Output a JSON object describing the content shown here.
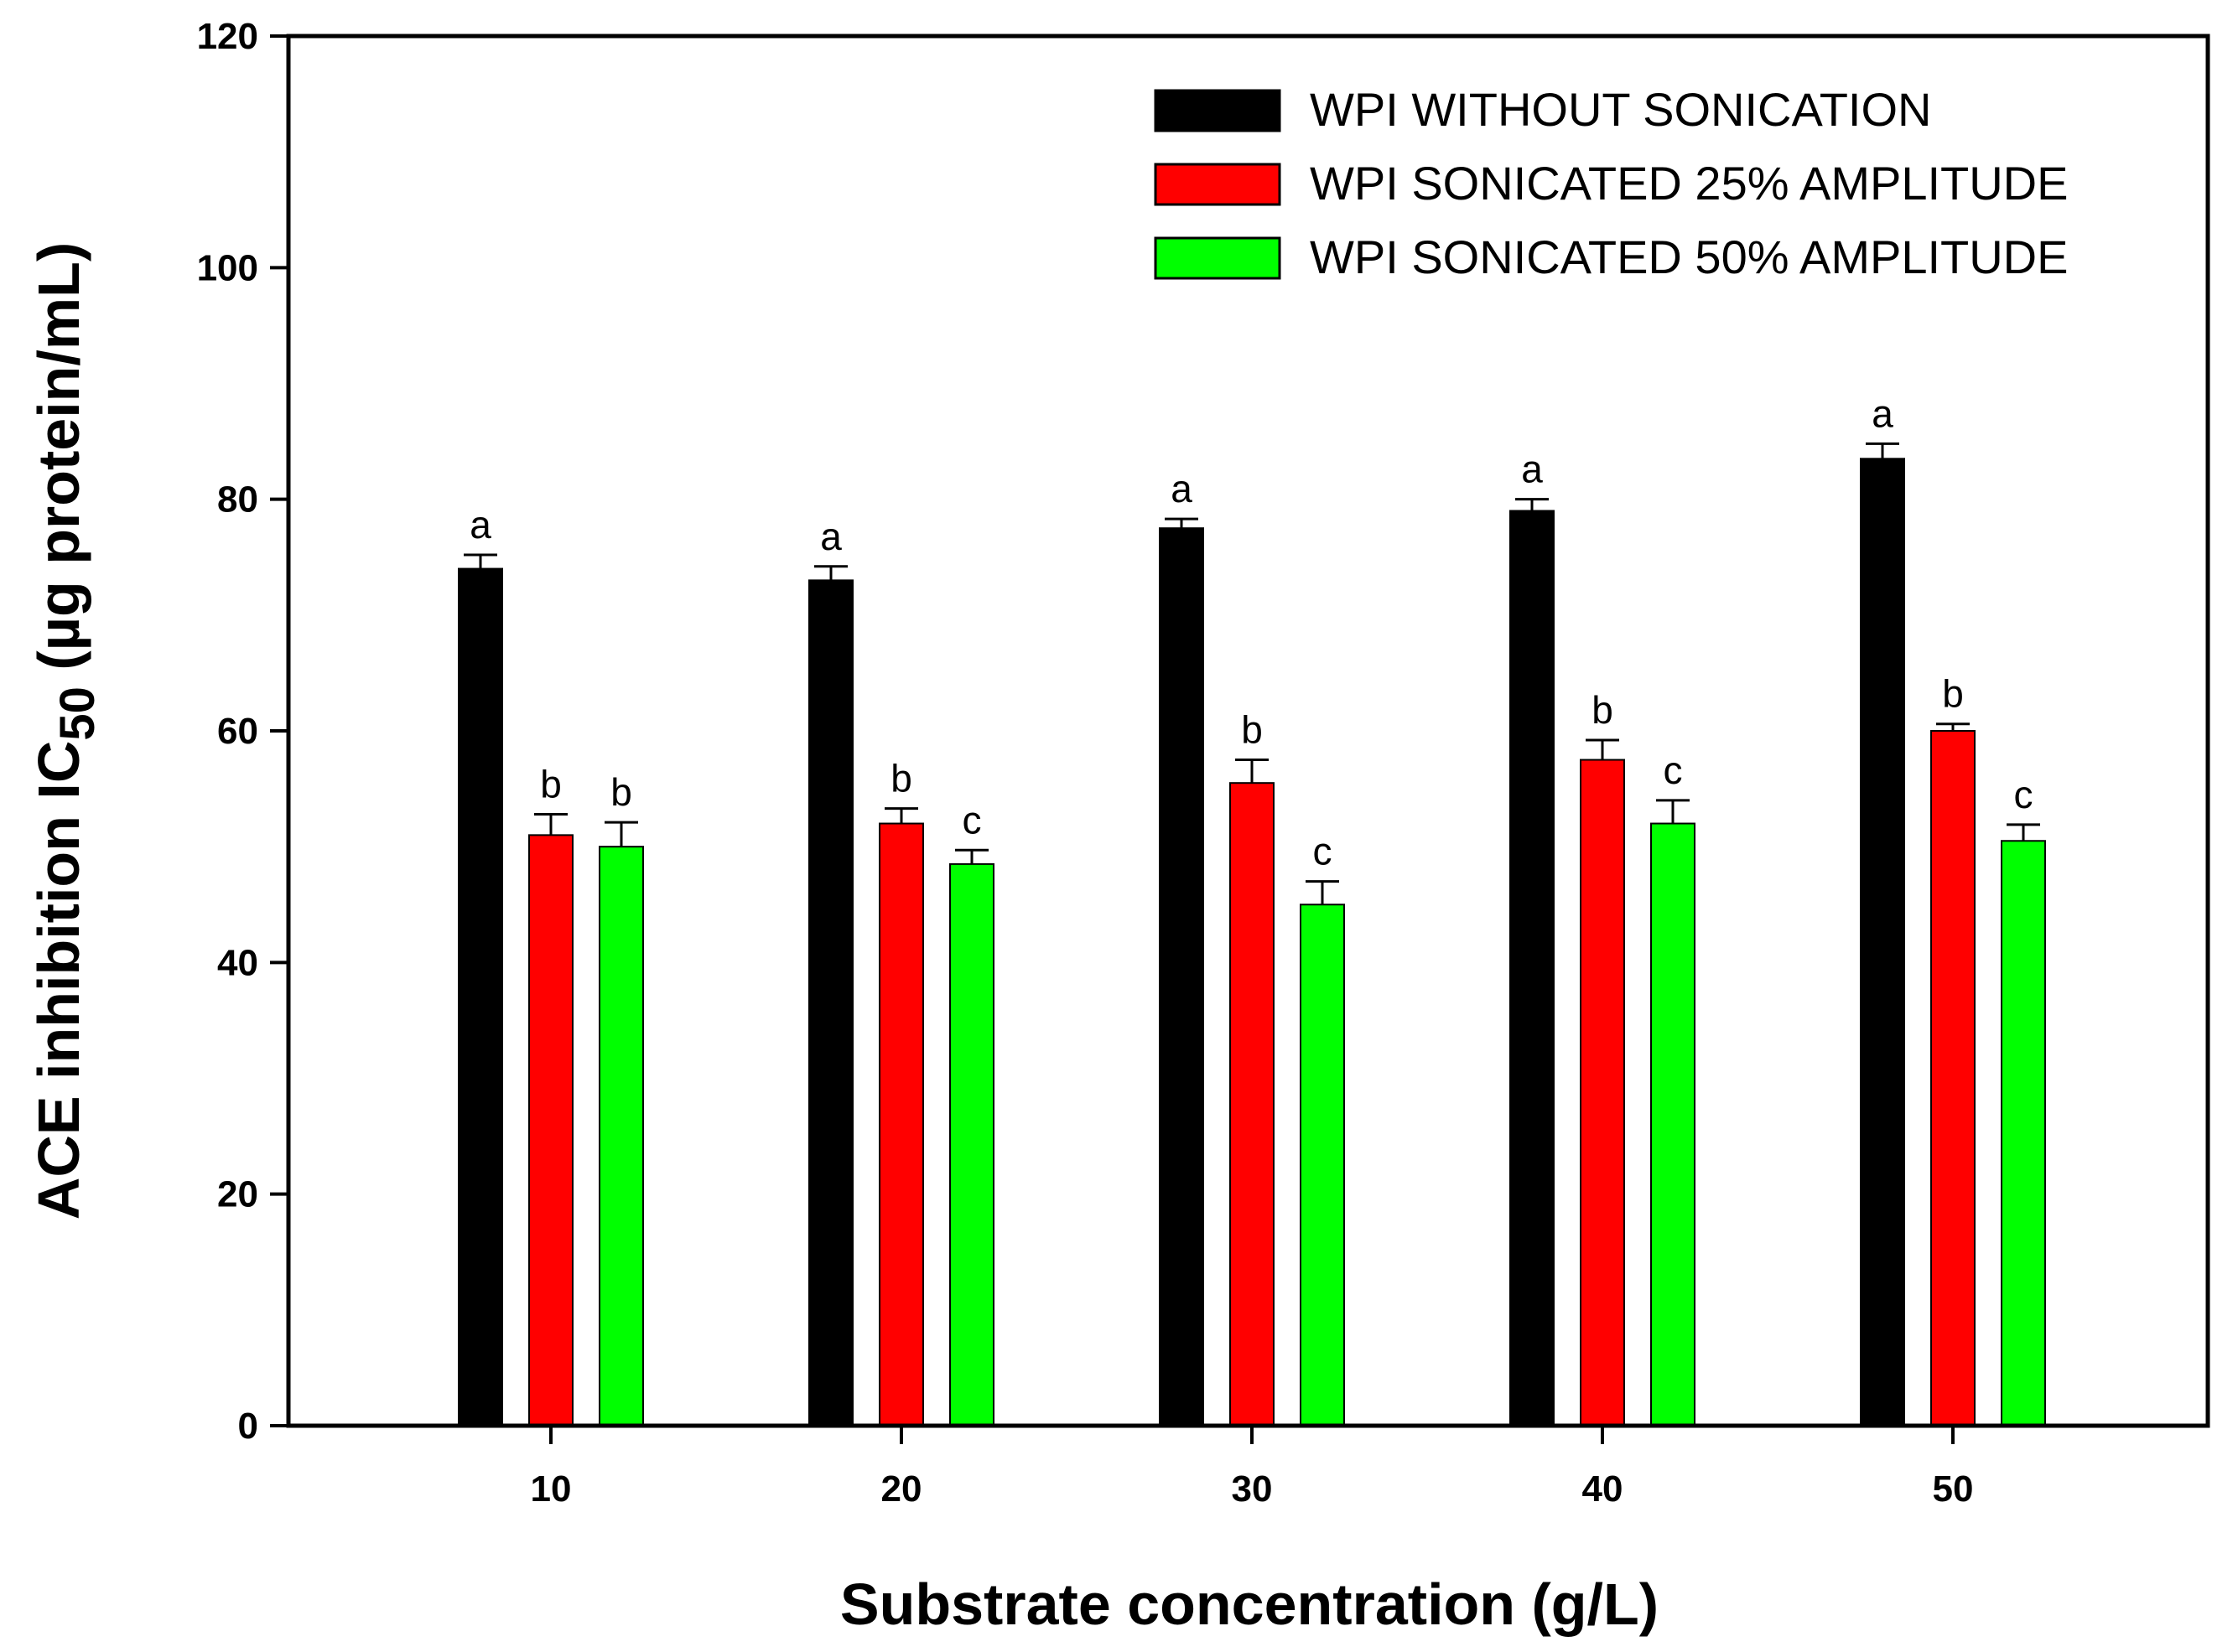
{
  "chart_data": {
    "type": "bar",
    "title": "",
    "xlabel": "Substrate concentration (g/L)",
    "ylabel": {
      "main": "ACE inhibition IC",
      "subscript": "50",
      "suffix": " (µg protein/mL)"
    },
    "ylim": [
      0,
      120
    ],
    "yticks": [
      0,
      20,
      40,
      60,
      80,
      100,
      120
    ],
    "grid": false,
    "legend_position": "top-right",
    "categories": [
      "10",
      "20",
      "30",
      "40",
      "50"
    ],
    "series": [
      {
        "name": "WPI WITHOUT SONICATION",
        "color": "#000000",
        "values": [
          74,
          73,
          77.5,
          79,
          83.5
        ],
        "errors": [
          1.2,
          1.2,
          0.8,
          1.0,
          1.3
        ],
        "letters": [
          "a",
          "a",
          "a",
          "a",
          "a"
        ]
      },
      {
        "name": "WPI SONICATED 25% AMPLITUDE",
        "color": "#ff0000",
        "values": [
          51,
          52,
          55.5,
          57.5,
          60
        ],
        "errors": [
          1.8,
          1.3,
          2.0,
          1.7,
          0.6
        ],
        "letters": [
          "b",
          "b",
          "b",
          "b",
          "b"
        ]
      },
      {
        "name": "WPI SONICATED 50% AMPLITUDE",
        "color": "#00ff00",
        "values": [
          50,
          48.5,
          45,
          52,
          50.5
        ],
        "errors": [
          2.1,
          1.2,
          2.0,
          2.0,
          1.4
        ],
        "letters": [
          "b",
          "c",
          "c",
          "c",
          "c"
        ]
      }
    ]
  }
}
